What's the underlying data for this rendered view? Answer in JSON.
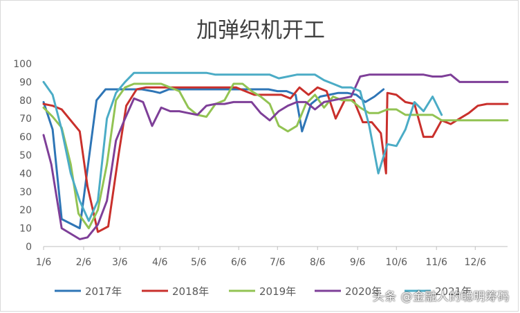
{
  "watermark": "头条 @金融人的聪明筹码",
  "chart_data": {
    "type": "line",
    "title": "加弹织机开工",
    "xlabel": "",
    "ylabel": "",
    "ylim": [
      0,
      100
    ],
    "xlim_day_of_year": [
      6,
      365
    ],
    "y_ticks": [
      "0",
      "10",
      "20",
      "30",
      "40",
      "50",
      "60",
      "70",
      "80",
      "90",
      "100"
    ],
    "x_ticks": [
      {
        "day": 6,
        "label": "1/6"
      },
      {
        "day": 37,
        "label": "2/6"
      },
      {
        "day": 65,
        "label": "3/6"
      },
      {
        "day": 96,
        "label": "4/6"
      },
      {
        "day": 126,
        "label": "5/6"
      },
      {
        "day": 157,
        "label": "6/6"
      },
      {
        "day": 187,
        "label": "7/6"
      },
      {
        "day": 218,
        "label": "8/6"
      },
      {
        "day": 249,
        "label": "9/6"
      },
      {
        "day": 279,
        "label": "10/6"
      },
      {
        "day": 310,
        "label": "11/6"
      },
      {
        "day": 340,
        "label": "12/6"
      }
    ],
    "grid": false,
    "legend_position": "bottom",
    "series": [
      {
        "name": "2017年",
        "color": "#2e75b6",
        "points": [
          [
            6,
            79
          ],
          [
            13,
            64
          ],
          [
            20,
            15
          ],
          [
            34,
            10
          ],
          [
            47,
            80
          ],
          [
            54,
            86
          ],
          [
            61,
            86
          ],
          [
            68,
            86
          ],
          [
            75,
            86
          ],
          [
            82,
            86
          ],
          [
            90,
            85
          ],
          [
            96,
            84
          ],
          [
            103,
            86
          ],
          [
            110,
            86
          ],
          [
            117,
            86
          ],
          [
            124,
            86
          ],
          [
            131,
            86
          ],
          [
            138,
            86
          ],
          [
            145,
            86
          ],
          [
            152,
            86
          ],
          [
            159,
            86
          ],
          [
            166,
            86
          ],
          [
            173,
            86
          ],
          [
            180,
            86
          ],
          [
            187,
            85
          ],
          [
            194,
            85
          ],
          [
            201,
            83
          ],
          [
            206,
            63
          ],
          [
            213,
            78
          ],
          [
            220,
            82
          ],
          [
            227,
            83
          ],
          [
            234,
            84
          ],
          [
            241,
            84
          ],
          [
            248,
            83
          ],
          [
            255,
            79
          ],
          [
            262,
            82
          ],
          [
            269,
            86
          ]
        ]
      },
      {
        "name": "2018年",
        "color": "#c9302c",
        "points": [
          [
            6,
            78
          ],
          [
            13,
            77
          ],
          [
            20,
            75
          ],
          [
            34,
            63
          ],
          [
            40,
            33
          ],
          [
            48,
            8
          ],
          [
            56,
            11
          ],
          [
            64,
            50
          ],
          [
            70,
            77
          ],
          [
            78,
            86
          ],
          [
            85,
            87
          ],
          [
            92,
            87
          ],
          [
            99,
            87
          ],
          [
            106,
            87
          ],
          [
            113,
            87
          ],
          [
            120,
            87
          ],
          [
            127,
            87
          ],
          [
            134,
            87
          ],
          [
            141,
            87
          ],
          [
            148,
            87
          ],
          [
            155,
            87
          ],
          [
            162,
            85
          ],
          [
            169,
            83
          ],
          [
            176,
            83
          ],
          [
            183,
            83
          ],
          [
            190,
            83
          ],
          [
            197,
            81
          ],
          [
            204,
            87
          ],
          [
            211,
            83
          ],
          [
            218,
            87
          ],
          [
            225,
            85
          ],
          [
            232,
            70
          ],
          [
            239,
            80
          ],
          [
            246,
            80
          ],
          [
            253,
            68
          ],
          [
            260,
            68
          ],
          [
            267,
            62
          ],
          [
            271,
            40
          ],
          [
            272,
            84
          ],
          [
            279,
            83
          ],
          [
            286,
            79
          ],
          [
            293,
            78
          ],
          [
            300,
            60
          ],
          [
            307,
            60
          ],
          [
            314,
            69
          ],
          [
            321,
            67
          ],
          [
            328,
            70
          ],
          [
            335,
            73
          ],
          [
            342,
            77
          ],
          [
            349,
            78
          ],
          [
            356,
            78
          ],
          [
            365,
            78
          ]
        ]
      },
      {
        "name": "2019年",
        "color": "#92c353",
        "points": [
          [
            6,
            76
          ],
          [
            13,
            71
          ],
          [
            20,
            65
          ],
          [
            27,
            45
          ],
          [
            33,
            18
          ],
          [
            41,
            10
          ],
          [
            48,
            20
          ],
          [
            55,
            45
          ],
          [
            62,
            80
          ],
          [
            69,
            87
          ],
          [
            76,
            89
          ],
          [
            83,
            89
          ],
          [
            90,
            89
          ],
          [
            97,
            89
          ],
          [
            104,
            87
          ],
          [
            111,
            85
          ],
          [
            118,
            76
          ],
          [
            125,
            72
          ],
          [
            132,
            71
          ],
          [
            139,
            78
          ],
          [
            146,
            80
          ],
          [
            153,
            89
          ],
          [
            160,
            89
          ],
          [
            167,
            85
          ],
          [
            174,
            82
          ],
          [
            181,
            78
          ],
          [
            188,
            66
          ],
          [
            195,
            63
          ],
          [
            202,
            66
          ],
          [
            209,
            78
          ],
          [
            216,
            83
          ],
          [
            223,
            76
          ],
          [
            230,
            82
          ],
          [
            237,
            80
          ],
          [
            244,
            80
          ],
          [
            251,
            76
          ],
          [
            258,
            73
          ],
          [
            265,
            73
          ],
          [
            272,
            75
          ],
          [
            279,
            75
          ],
          [
            286,
            72
          ],
          [
            293,
            72
          ],
          [
            300,
            72
          ],
          [
            307,
            72
          ],
          [
            314,
            69
          ],
          [
            321,
            69
          ],
          [
            328,
            69
          ],
          [
            335,
            69
          ],
          [
            342,
            69
          ],
          [
            349,
            69
          ],
          [
            356,
            69
          ],
          [
            365,
            69
          ]
        ]
      },
      {
        "name": "2020年",
        "color": "#7e3f98",
        "points": [
          [
            6,
            61
          ],
          [
            12,
            45
          ],
          [
            20,
            10
          ],
          [
            34,
            4
          ],
          [
            40,
            5
          ],
          [
            48,
            12
          ],
          [
            55,
            25
          ],
          [
            62,
            58
          ],
          [
            69,
            70
          ],
          [
            76,
            81
          ],
          [
            83,
            79
          ],
          [
            90,
            66
          ],
          [
            97,
            76
          ],
          [
            104,
            74
          ],
          [
            111,
            74
          ],
          [
            118,
            73
          ],
          [
            125,
            72
          ],
          [
            132,
            77
          ],
          [
            139,
            78
          ],
          [
            146,
            78
          ],
          [
            153,
            79
          ],
          [
            160,
            79
          ],
          [
            167,
            79
          ],
          [
            174,
            73
          ],
          [
            181,
            69
          ],
          [
            188,
            74
          ],
          [
            195,
            77
          ],
          [
            202,
            79
          ],
          [
            209,
            79
          ],
          [
            216,
            75
          ],
          [
            223,
            79
          ],
          [
            230,
            80
          ],
          [
            237,
            81
          ],
          [
            244,
            82
          ],
          [
            251,
            93
          ],
          [
            258,
            94
          ],
          [
            265,
            94
          ],
          [
            272,
            94
          ],
          [
            279,
            94
          ],
          [
            286,
            94
          ],
          [
            293,
            94
          ],
          [
            300,
            94
          ],
          [
            307,
            93
          ],
          [
            314,
            93
          ],
          [
            321,
            94
          ],
          [
            328,
            90
          ],
          [
            335,
            90
          ],
          [
            342,
            90
          ],
          [
            349,
            90
          ],
          [
            356,
            90
          ],
          [
            365,
            90
          ]
        ]
      },
      {
        "name": "2021年",
        "color": "#4bacc6",
        "points": [
          [
            6,
            90
          ],
          [
            13,
            83
          ],
          [
            20,
            64
          ],
          [
            27,
            40
          ],
          [
            34,
            25
          ],
          [
            41,
            14
          ],
          [
            48,
            25
          ],
          [
            55,
            70
          ],
          [
            62,
            84
          ],
          [
            69,
            90
          ],
          [
            76,
            95
          ],
          [
            83,
            95
          ],
          [
            90,
            95
          ],
          [
            97,
            95
          ],
          [
            104,
            95
          ],
          [
            111,
            95
          ],
          [
            118,
            95
          ],
          [
            125,
            95
          ],
          [
            132,
            95
          ],
          [
            139,
            94
          ],
          [
            146,
            94
          ],
          [
            153,
            94
          ],
          [
            160,
            94
          ],
          [
            167,
            94
          ],
          [
            174,
            94
          ],
          [
            181,
            94
          ],
          [
            188,
            92
          ],
          [
            195,
            93
          ],
          [
            202,
            94
          ],
          [
            209,
            94
          ],
          [
            216,
            94
          ],
          [
            223,
            91
          ],
          [
            230,
            89
          ],
          [
            237,
            87
          ],
          [
            244,
            87
          ],
          [
            251,
            85
          ],
          [
            258,
            66
          ],
          [
            265,
            40
          ],
          [
            272,
            56
          ],
          [
            279,
            55
          ],
          [
            286,
            64
          ],
          [
            293,
            79
          ],
          [
            300,
            74
          ],
          [
            307,
            82
          ],
          [
            314,
            72
          ]
        ]
      }
    ]
  }
}
